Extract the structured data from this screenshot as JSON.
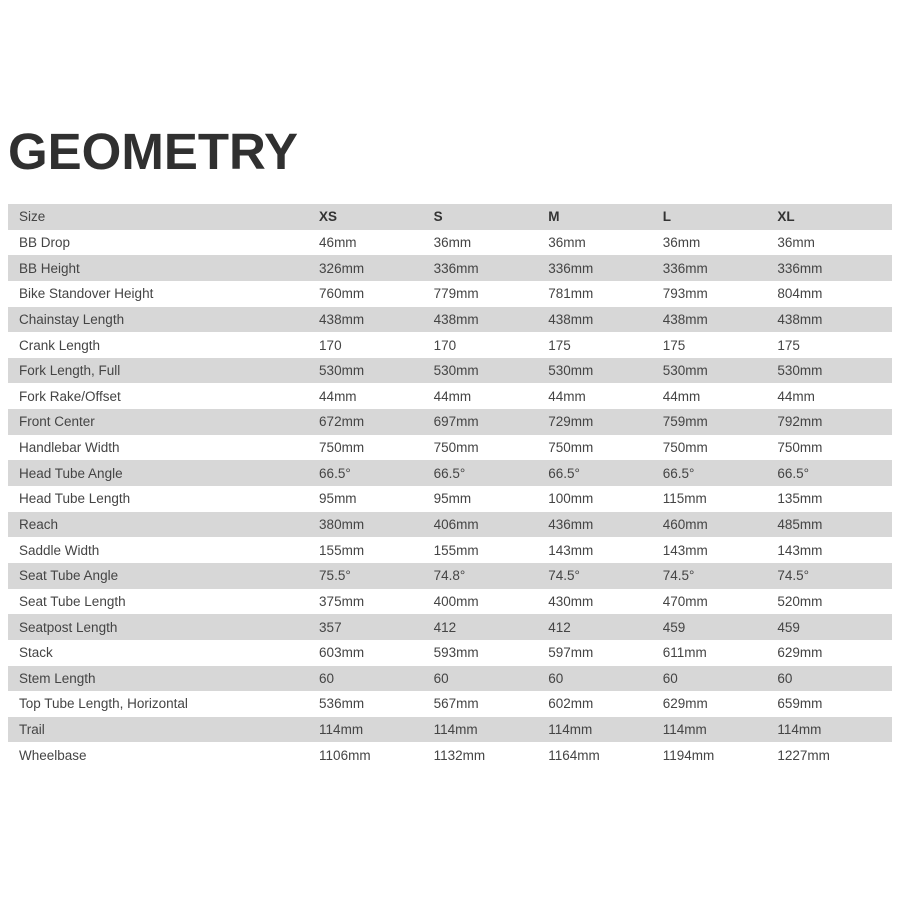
{
  "title": "GEOMETRY",
  "table": {
    "header": {
      "label": "Size",
      "sizes": [
        "XS",
        "S",
        "M",
        "L",
        "XL"
      ]
    },
    "rows": [
      {
        "label": "BB Drop",
        "values": [
          "46mm",
          "36mm",
          "36mm",
          "36mm",
          "36mm"
        ]
      },
      {
        "label": "BB Height",
        "values": [
          "326mm",
          "336mm",
          "336mm",
          "336mm",
          "336mm"
        ]
      },
      {
        "label": "Bike Standover Height",
        "values": [
          "760mm",
          "779mm",
          "781mm",
          "793mm",
          "804mm"
        ]
      },
      {
        "label": "Chainstay Length",
        "values": [
          "438mm",
          "438mm",
          "438mm",
          "438mm",
          "438mm"
        ]
      },
      {
        "label": "Crank Length",
        "values": [
          "170",
          "170",
          "175",
          "175",
          "175"
        ]
      },
      {
        "label": "Fork Length, Full",
        "values": [
          "530mm",
          "530mm",
          "530mm",
          "530mm",
          "530mm"
        ]
      },
      {
        "label": "Fork Rake/Offset",
        "values": [
          "44mm",
          "44mm",
          "44mm",
          "44mm",
          "44mm"
        ]
      },
      {
        "label": "Front Center",
        "values": [
          "672mm",
          "697mm",
          "729mm",
          "759mm",
          "792mm"
        ]
      },
      {
        "label": "Handlebar Width",
        "values": [
          "750mm",
          "750mm",
          "750mm",
          "750mm",
          "750mm"
        ]
      },
      {
        "label": "Head Tube Angle",
        "values": [
          "66.5°",
          "66.5°",
          "66.5°",
          "66.5°",
          "66.5°"
        ]
      },
      {
        "label": "Head Tube Length",
        "values": [
          "95mm",
          "95mm",
          "100mm",
          "115mm",
          "135mm"
        ]
      },
      {
        "label": "Reach",
        "values": [
          "380mm",
          "406mm",
          "436mm",
          "460mm",
          "485mm"
        ]
      },
      {
        "label": "Saddle Width",
        "values": [
          "155mm",
          "155mm",
          "143mm",
          "143mm",
          "143mm"
        ]
      },
      {
        "label": "Seat Tube Angle",
        "values": [
          "75.5°",
          "74.8°",
          "74.5°",
          "74.5°",
          "74.5°"
        ]
      },
      {
        "label": "Seat Tube Length",
        "values": [
          "375mm",
          "400mm",
          "430mm",
          "470mm",
          "520mm"
        ]
      },
      {
        "label": "Seatpost Length",
        "values": [
          "357",
          "412",
          "412",
          "459",
          "459"
        ]
      },
      {
        "label": "Stack",
        "values": [
          "603mm",
          "593mm",
          "597mm",
          "611mm",
          "629mm"
        ]
      },
      {
        "label": "Stem Length",
        "values": [
          "60",
          "60",
          "60",
          "60",
          "60"
        ]
      },
      {
        "label": "Top Tube Length, Horizontal",
        "values": [
          "536mm",
          "567mm",
          "602mm",
          "629mm",
          "659mm"
        ]
      },
      {
        "label": "Trail",
        "values": [
          "114mm",
          "114mm",
          "114mm",
          "114mm",
          "114mm"
        ]
      },
      {
        "label": "Wheelbase",
        "values": [
          "1106mm",
          "1132mm",
          "1164mm",
          "1194mm",
          "1227mm"
        ]
      }
    ]
  },
  "colors": {
    "stripe": "#d7d7d7",
    "title": "#303030",
    "text": "#444444"
  }
}
